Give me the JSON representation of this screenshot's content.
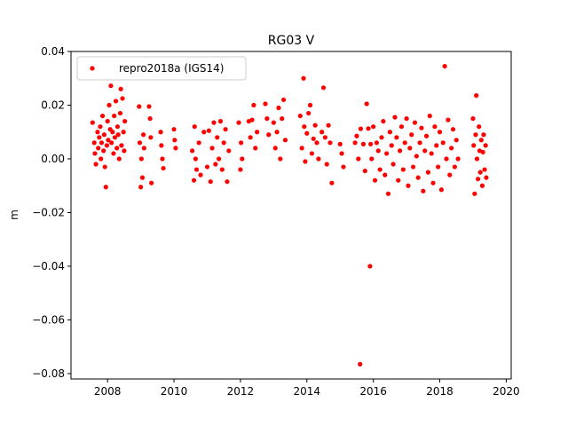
{
  "chart_data": {
    "type": "scatter",
    "title": "RG03 V",
    "xlabel": "",
    "ylabel": "m",
    "xlim": [
      2006.9,
      2020.15
    ],
    "ylim": [
      -0.082,
      0.04
    ],
    "x_ticks": [
      2008,
      2010,
      2012,
      2014,
      2016,
      2018,
      2020
    ],
    "x_tick_labels": [
      "2008",
      "2010",
      "2012",
      "2014",
      "2016",
      "2018",
      "2020"
    ],
    "y_ticks": [
      -0.08,
      -0.06,
      -0.04,
      -0.02,
      0.0,
      0.02,
      0.04
    ],
    "y_tick_labels": [
      "−0.08",
      "−0.06",
      "−0.04",
      "−0.02",
      "0.00",
      "0.02",
      "0.04"
    ],
    "grid": false,
    "legend_position": "top-left",
    "marker_color": "#ff0000",
    "series": [
      {
        "name": "repro2018a (IGS14)",
        "color": "#ff0000",
        "marker": "circle",
        "points": [
          [
            2007.55,
            0.0135
          ],
          [
            2007.6,
            0.006
          ],
          [
            2007.62,
            0.002
          ],
          [
            2007.65,
            -0.002
          ],
          [
            2007.7,
            0.01
          ],
          [
            2007.72,
            0.004
          ],
          [
            2007.75,
            0.008
          ],
          [
            2007.78,
            0.012
          ],
          [
            2007.8,
            0.0
          ],
          [
            2007.82,
            0.006
          ],
          [
            2007.85,
            0.016
          ],
          [
            2007.88,
            0.003
          ],
          [
            2007.9,
            0.009
          ],
          [
            2007.92,
            -0.003
          ],
          [
            2007.95,
            -0.0105
          ],
          [
            2007.98,
            0.005
          ],
          [
            2008.0,
            0.014
          ],
          [
            2008.02,
            0.007
          ],
          [
            2008.05,
            0.02
          ],
          [
            2008.08,
            0.011
          ],
          [
            2008.1,
            0.0272
          ],
          [
            2008.12,
            0.006
          ],
          [
            2008.15,
            0.01
          ],
          [
            2008.18,
            0.002
          ],
          [
            2008.2,
            0.016
          ],
          [
            2008.22,
            0.008
          ],
          [
            2008.25,
            0.0215
          ],
          [
            2008.28,
            0.004
          ],
          [
            2008.3,
            0.012
          ],
          [
            2008.32,
            0.009
          ],
          [
            2008.35,
            0.0
          ],
          [
            2008.38,
            0.017
          ],
          [
            2008.4,
            0.026
          ],
          [
            2008.42,
            0.005
          ],
          [
            2008.45,
            0.0225
          ],
          [
            2008.48,
            0.01
          ],
          [
            2008.5,
            0.003
          ],
          [
            2008.52,
            0.014
          ],
          [
            2008.95,
            0.0195
          ],
          [
            2008.97,
            0.006
          ],
          [
            2009.0,
            -0.0105
          ],
          [
            2009.02,
            0.0
          ],
          [
            2009.05,
            -0.007
          ],
          [
            2009.08,
            0.009
          ],
          [
            2009.1,
            0.004
          ],
          [
            2009.25,
            0.0195
          ],
          [
            2009.28,
            0.015
          ],
          [
            2009.3,
            0.008
          ],
          [
            2009.32,
            -0.009
          ],
          [
            2009.6,
            0.01
          ],
          [
            2009.62,
            0.005
          ],
          [
            2009.65,
            0.0
          ],
          [
            2009.68,
            -0.0035
          ],
          [
            2010.0,
            0.011
          ],
          [
            2010.02,
            0.007
          ],
          [
            2010.05,
            0.004
          ],
          [
            2010.55,
            0.003
          ],
          [
            2010.6,
            -0.008
          ],
          [
            2010.62,
            0.012
          ],
          [
            2010.65,
            0.0
          ],
          [
            2010.68,
            -0.004
          ],
          [
            2010.75,
            0.006
          ],
          [
            2010.8,
            -0.006
          ],
          [
            2010.9,
            0.01
          ],
          [
            2011.0,
            -0.003
          ],
          [
            2011.05,
            0.0105
          ],
          [
            2011.1,
            -0.0085
          ],
          [
            2011.15,
            0.004
          ],
          [
            2011.2,
            0.0135
          ],
          [
            2011.25,
            -0.002
          ],
          [
            2011.3,
            0.008
          ],
          [
            2011.35,
            0.0
          ],
          [
            2011.4,
            0.014
          ],
          [
            2011.45,
            -0.004
          ],
          [
            2011.5,
            0.006
          ],
          [
            2011.55,
            0.011
          ],
          [
            2011.6,
            -0.0085
          ],
          [
            2011.65,
            0.003
          ],
          [
            2011.95,
            0.0135
          ],
          [
            2012.0,
            -0.004
          ],
          [
            2012.02,
            0.006
          ],
          [
            2012.05,
            0.0
          ],
          [
            2012.25,
            0.014
          ],
          [
            2012.3,
            0.008
          ],
          [
            2012.35,
            0.0145
          ],
          [
            2012.4,
            0.02
          ],
          [
            2012.45,
            0.004
          ],
          [
            2012.5,
            0.01
          ],
          [
            2012.75,
            0.0205
          ],
          [
            2012.8,
            0.015
          ],
          [
            2012.85,
            0.009
          ],
          [
            2013.0,
            0.0135
          ],
          [
            2013.05,
            0.004
          ],
          [
            2013.1,
            0.01
          ],
          [
            2013.15,
            0.019
          ],
          [
            2013.2,
            0.0
          ],
          [
            2013.25,
            0.015
          ],
          [
            2013.3,
            0.022
          ],
          [
            2013.35,
            0.007
          ],
          [
            2013.8,
            0.016
          ],
          [
            2013.85,
            0.004
          ],
          [
            2013.9,
            0.03
          ],
          [
            2013.92,
            0.012
          ],
          [
            2013.95,
            -0.001
          ],
          [
            2014.0,
            0.0095
          ],
          [
            2014.05,
            0.017
          ],
          [
            2014.1,
            0.02
          ],
          [
            2014.15,
            0.002
          ],
          [
            2014.2,
            0.0075
          ],
          [
            2014.25,
            0.0125
          ],
          [
            2014.3,
            0.006
          ],
          [
            2014.35,
            0.0
          ],
          [
            2014.45,
            0.01
          ],
          [
            2014.5,
            0.0265
          ],
          [
            2014.55,
            0.008
          ],
          [
            2014.6,
            -0.002
          ],
          [
            2014.65,
            0.0125
          ],
          [
            2014.7,
            0.006
          ],
          [
            2014.75,
            -0.009
          ],
          [
            2015.0,
            0.0055
          ],
          [
            2015.05,
            0.002
          ],
          [
            2015.1,
            -0.003
          ],
          [
            2015.45,
            0.006
          ],
          [
            2015.5,
            0.0085
          ],
          [
            2015.55,
            0.0
          ],
          [
            2015.6,
            -0.0765
          ],
          [
            2015.62,
            0.0112
          ],
          [
            2015.7,
            0.0055
          ],
          [
            2015.75,
            -0.0045
          ],
          [
            2015.8,
            0.0205
          ],
          [
            2015.85,
            0.0113
          ],
          [
            2015.9,
            -0.04
          ],
          [
            2015.92,
            0.0055
          ],
          [
            2015.95,
            0.0
          ],
          [
            2016.0,
            0.012
          ],
          [
            2016.05,
            -0.008
          ],
          [
            2016.1,
            0.006
          ],
          [
            2016.15,
            0.003
          ],
          [
            2016.2,
            -0.004
          ],
          [
            2016.25,
            0.008
          ],
          [
            2016.3,
            0.014
          ],
          [
            2016.35,
            -0.006
          ],
          [
            2016.4,
            0.002
          ],
          [
            2016.45,
            -0.013
          ],
          [
            2016.5,
            0.01
          ],
          [
            2016.55,
            0.005
          ],
          [
            2016.6,
            -0.002
          ],
          [
            2016.65,
            0.0155
          ],
          [
            2016.7,
            0.008
          ],
          [
            2016.75,
            -0.008
          ],
          [
            2016.8,
            0.003
          ],
          [
            2016.85,
            0.012
          ],
          [
            2016.9,
            -0.004
          ],
          [
            2016.95,
            0.006
          ],
          [
            2017.0,
            0.015
          ],
          [
            2017.05,
            -0.01
          ],
          [
            2017.1,
            0.004
          ],
          [
            2017.15,
            0.009
          ],
          [
            2017.2,
            -0.003
          ],
          [
            2017.25,
            0.0135
          ],
          [
            2017.3,
            0.001
          ],
          [
            2017.35,
            -0.007
          ],
          [
            2017.4,
            0.006
          ],
          [
            2017.45,
            0.0115
          ],
          [
            2017.5,
            -0.012
          ],
          [
            2017.55,
            0.003
          ],
          [
            2017.6,
            0.0085
          ],
          [
            2017.65,
            -0.005
          ],
          [
            2017.7,
            0.016
          ],
          [
            2017.75,
            0.002
          ],
          [
            2017.8,
            -0.009
          ],
          [
            2017.85,
            0.012
          ],
          [
            2017.9,
            0.005
          ],
          [
            2017.95,
            -0.003
          ],
          [
            2018.0,
            0.01
          ],
          [
            2018.05,
            -0.0115
          ],
          [
            2018.1,
            0.006
          ],
          [
            2018.15,
            0.0345
          ],
          [
            2018.2,
            0.0
          ],
          [
            2018.25,
            0.0145
          ],
          [
            2018.3,
            -0.006
          ],
          [
            2018.35,
            0.004
          ],
          [
            2018.4,
            0.011
          ],
          [
            2018.45,
            -0.003
          ],
          [
            2018.5,
            0.007
          ],
          [
            2018.55,
            0.0
          ],
          [
            2019.0,
            0.015
          ],
          [
            2019.02,
            0.005
          ],
          [
            2019.05,
            -0.013
          ],
          [
            2019.08,
            0.009
          ],
          [
            2019.1,
            0.0236
          ],
          [
            2019.12,
            0.0
          ],
          [
            2019.15,
            -0.0075
          ],
          [
            2019.18,
            0.012
          ],
          [
            2019.2,
            0.003
          ],
          [
            2019.22,
            -0.005
          ],
          [
            2019.25,
            0.007
          ],
          [
            2019.28,
            -0.01
          ],
          [
            2019.3,
            0.0025
          ],
          [
            2019.32,
            0.009
          ],
          [
            2019.35,
            -0.004
          ],
          [
            2019.38,
            0.005
          ],
          [
            2019.4,
            -0.007
          ]
        ]
      }
    ]
  }
}
